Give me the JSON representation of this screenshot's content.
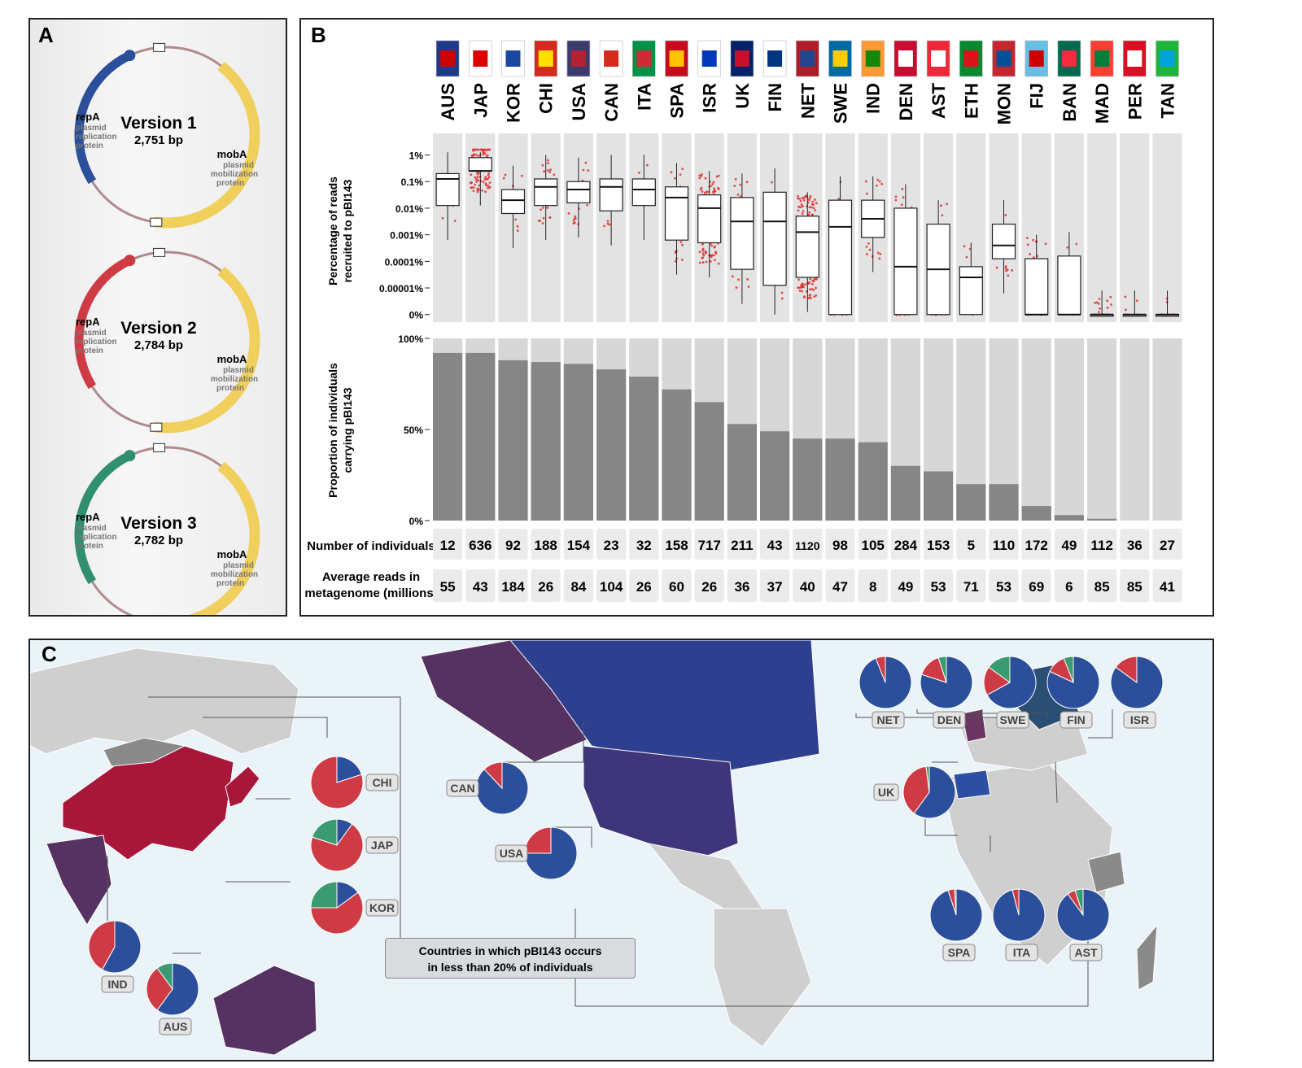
{
  "panels": {
    "a": "A",
    "b": "B",
    "c": "C"
  },
  "plasmids": [
    {
      "title": "Version 1",
      "size": "2,751 bp",
      "repa_color": "#2b4f9a",
      "gene1": "repA",
      "gene1_desc": [
        "plasmid",
        "replication",
        "protein"
      ],
      "gene2": "mobA",
      "gene2_desc": [
        "plasmid",
        "mobilization",
        "protein"
      ]
    },
    {
      "title": "Version 2",
      "size": "2,784 bp",
      "repa_color": "#cf3b45",
      "gene1": "repA",
      "gene1_desc": [
        "plasmid",
        "replication",
        "protein"
      ],
      "gene2": "mobA",
      "gene2_desc": [
        "plasmid",
        "mobilization",
        "protein"
      ]
    },
    {
      "title": "Version 3",
      "size": "2,782 bp",
      "repa_color": "#2f8f6f",
      "gene1": "repA",
      "gene1_desc": [
        "plasmid",
        "replication",
        "protein"
      ],
      "gene2": "mobA",
      "gene2_desc": [
        "plasmid",
        "mobilization",
        "protein"
      ]
    }
  ],
  "mob_color": "#f1cf5c",
  "countries": [
    "AUS",
    "JAP",
    "KOR",
    "CHI",
    "USA",
    "CAN",
    "ITA",
    "SPA",
    "ISR",
    "UK",
    "FIN",
    "NET",
    "SWE",
    "IND",
    "DEN",
    "AST",
    "ETH",
    "MON",
    "FIJ",
    "BAN",
    "MAD",
    "PER",
    "TAN"
  ],
  "chart_data": [
    {
      "type": "box",
      "ylabel": "Percentage of reads recruited to pBI143",
      "y_ticks": [
        "1%",
        "0.1%",
        "0.01%",
        "0.001%",
        "0.0001%",
        "0.00001%",
        "0%"
      ],
      "log10_ticks": [
        0,
        -1,
        -2,
        -3,
        -4,
        -5,
        -6
      ],
      "point_color": "#e03030",
      "boxes_log10_pct": [
        {
          "q1": -1.9,
          "median": -0.9,
          "q3": -0.7
        },
        {
          "q1": -0.6,
          "median": -0.6,
          "q3": -0.1
        },
        {
          "q1": -2.2,
          "median": -1.7,
          "q3": -1.3
        },
        {
          "q1": -1.9,
          "median": -1.2,
          "q3": -0.9
        },
        {
          "q1": -1.8,
          "median": -1.3,
          "q3": -1.0
        },
        {
          "q1": -2.1,
          "median": -1.2,
          "q3": -0.9
        },
        {
          "q1": -1.9,
          "median": -1.3,
          "q3": -0.9
        },
        {
          "q1": -3.2,
          "median": -1.6,
          "q3": -1.2
        },
        {
          "q1": -3.3,
          "median": -2.0,
          "q3": -1.5
        },
        {
          "q1": -4.3,
          "median": -2.5,
          "q3": -1.6
        },
        {
          "q1": -4.9,
          "median": -2.5,
          "q3": -1.4
        },
        {
          "q1": -4.6,
          "median": -2.9,
          "q3": -2.3
        },
        {
          "q1": -6.0,
          "median": -2.7,
          "q3": -1.7
        },
        {
          "q1": -3.1,
          "median": -2.4,
          "q3": -1.7
        },
        {
          "q1": -6.0,
          "median": -4.2,
          "q3": -2.0
        },
        {
          "q1": -6.0,
          "median": -4.3,
          "q3": -2.6
        },
        {
          "q1": -6.0,
          "median": -4.6,
          "q3": -4.2
        },
        {
          "q1": -3.9,
          "median": -3.4,
          "q3": -2.6
        },
        {
          "q1": -6.0,
          "median": -6.0,
          "q3": -3.9
        },
        {
          "q1": -6.0,
          "median": -6.0,
          "q3": -3.8
        },
        {
          "q1": -6.0,
          "median": -6.0,
          "q3": -6.0
        },
        {
          "q1": -6.0,
          "median": -6.0,
          "q3": -6.0
        },
        {
          "q1": -6.0,
          "median": -6.0,
          "q3": -6.0
        }
      ]
    },
    {
      "type": "bar",
      "ylabel": "Proportion of individuals carrying pBI143",
      "y_ticks": [
        "100%",
        "50%",
        "0%"
      ],
      "ylim": [
        0,
        100
      ],
      "values": [
        92,
        92,
        88,
        87,
        86,
        83,
        79,
        72,
        65,
        53,
        49,
        45,
        45,
        43,
        30,
        27,
        20,
        20,
        8,
        3,
        1,
        0,
        0
      ]
    }
  ],
  "table": {
    "row1_label": "Number of individuals",
    "row2_label_1": "Average reads in",
    "row2_label_2": "metagenome (millions)",
    "individuals": [
      "12",
      "636",
      "92",
      "188",
      "154",
      "23",
      "32",
      "158",
      "717",
      "211",
      "43",
      "1120",
      "98",
      "105",
      "284",
      "153",
      "5",
      "110",
      "172",
      "49",
      "112",
      "36",
      "27"
    ],
    "avg_reads": [
      "55",
      "43",
      "184",
      "26",
      "84",
      "104",
      "26",
      "60",
      "26",
      "36",
      "37",
      "40",
      "47",
      "8",
      "49",
      "53",
      "71",
      "53",
      "69",
      "6",
      "85",
      "85",
      "41"
    ]
  },
  "map": {
    "legend_line1": "Countries in which pBI143 occurs",
    "legend_line2": "in less than 20% of individuals",
    "colors": {
      "v1": "#2b4f9a",
      "v2": "#cf3b45",
      "v3": "#3a9a72"
    },
    "pies": [
      {
        "label": "CHI",
        "v1": 0.2,
        "v2": 0.8,
        "v3": 0.0
      },
      {
        "label": "JAP",
        "v1": 0.1,
        "v2": 0.7,
        "v3": 0.2
      },
      {
        "label": "KOR",
        "v1": 0.15,
        "v2": 0.6,
        "v3": 0.25
      },
      {
        "label": "IND",
        "v1": 0.58,
        "v2": 0.42,
        "v3": 0.0
      },
      {
        "label": "AUS",
        "v1": 0.6,
        "v2": 0.3,
        "v3": 0.1
      },
      {
        "label": "CAN",
        "v1": 0.88,
        "v2": 0.12,
        "v3": 0.0
      },
      {
        "label": "USA",
        "v1": 0.75,
        "v2": 0.25,
        "v3": 0.0
      },
      {
        "label": "UK",
        "v1": 0.6,
        "v2": 0.38,
        "v3": 0.02
      },
      {
        "label": "NET",
        "v1": 0.94,
        "v2": 0.06,
        "v3": 0.0
      },
      {
        "label": "DEN",
        "v1": 0.8,
        "v2": 0.15,
        "v3": 0.05
      },
      {
        "label": "SWE",
        "v1": 0.67,
        "v2": 0.18,
        "v3": 0.15
      },
      {
        "label": "FIN",
        "v1": 0.82,
        "v2": 0.12,
        "v3": 0.06
      },
      {
        "label": "ISR",
        "v1": 0.85,
        "v2": 0.15,
        "v3": 0.0
      },
      {
        "label": "SPA",
        "v1": 0.95,
        "v2": 0.04,
        "v3": 0.01
      },
      {
        "label": "ITA",
        "v1": 0.96,
        "v2": 0.04,
        "v3": 0.0
      },
      {
        "label": "AST",
        "v1": 0.9,
        "v2": 0.05,
        "v3": 0.05
      }
    ]
  }
}
